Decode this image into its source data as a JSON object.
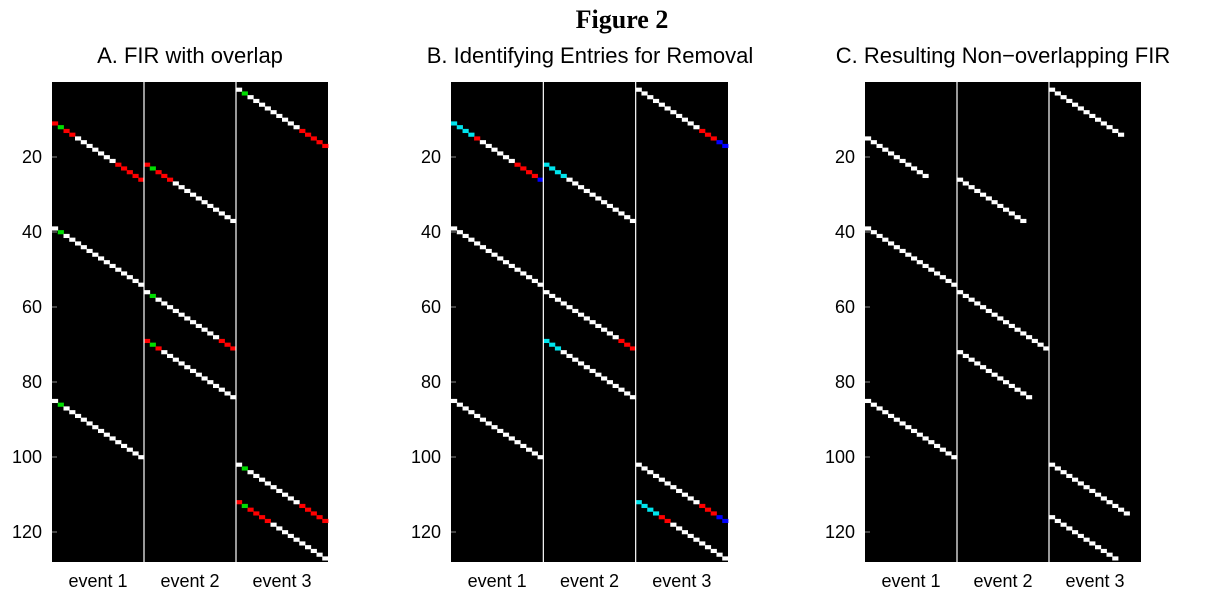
{
  "figure_title": "Figure 2",
  "colors": {
    "background": "#000000",
    "white": "#ffffff",
    "red": "#ff0000",
    "green": "#00dd00",
    "cyan": "#00e5ee",
    "blue": "#0000ff",
    "divider": "#ffffff"
  },
  "chart_data": [
    {
      "type": "heatmap",
      "title": "A. FIR with overlap",
      "ylim": [
        0,
        128
      ],
      "yticks": [
        20,
        40,
        60,
        80,
        100,
        120
      ],
      "columns": [
        "event 1",
        "event 2",
        "event 3"
      ],
      "diagonals": [
        {
          "column": "event 1",
          "start_row": 11,
          "length": 16,
          "colors": [
            "red",
            "green",
            "red",
            "red",
            "white",
            "white",
            "white",
            "white",
            "white",
            "white",
            "white",
            "red",
            "red",
            "red",
            "red",
            "red"
          ]
        },
        {
          "column": "event 1",
          "start_row": 39,
          "length": 16,
          "colors": [
            "white",
            "green",
            "white",
            "white",
            "white",
            "white",
            "white",
            "white",
            "white",
            "white",
            "white",
            "white",
            "white",
            "white",
            "white",
            "white"
          ]
        },
        {
          "column": "event 1",
          "start_row": 85,
          "length": 16,
          "colors": [
            "white",
            "green",
            "white",
            "white",
            "white",
            "white",
            "white",
            "white",
            "white",
            "white",
            "white",
            "white",
            "white",
            "white",
            "white",
            "white"
          ]
        },
        {
          "column": "event 2",
          "start_row": 22,
          "length": 16,
          "colors": [
            "red",
            "green",
            "red",
            "red",
            "red",
            "white",
            "white",
            "white",
            "white",
            "white",
            "white",
            "white",
            "white",
            "white",
            "white",
            "white"
          ]
        },
        {
          "column": "event 2",
          "start_row": 56,
          "length": 16,
          "colors": [
            "white",
            "green",
            "white",
            "white",
            "white",
            "white",
            "white",
            "white",
            "white",
            "white",
            "white",
            "white",
            "white",
            "red",
            "red",
            "red"
          ]
        },
        {
          "column": "event 2",
          "start_row": 69,
          "length": 16,
          "colors": [
            "red",
            "green",
            "red",
            "white",
            "white",
            "white",
            "white",
            "white",
            "white",
            "white",
            "white",
            "white",
            "white",
            "white",
            "white",
            "white"
          ]
        },
        {
          "column": "event 3",
          "start_row": 2,
          "length": 16,
          "colors": [
            "white",
            "green",
            "white",
            "white",
            "white",
            "white",
            "white",
            "white",
            "white",
            "white",
            "white",
            "red",
            "red",
            "red",
            "red",
            "red"
          ]
        },
        {
          "column": "event 3",
          "start_row": 102,
          "length": 16,
          "colors": [
            "white",
            "green",
            "white",
            "white",
            "white",
            "white",
            "white",
            "white",
            "white",
            "white",
            "white",
            "red",
            "red",
            "red",
            "red",
            "red"
          ]
        },
        {
          "column": "event 3",
          "start_row": 112,
          "length": 16,
          "colors": [
            "red",
            "green",
            "red",
            "red",
            "red",
            "red",
            "white",
            "white",
            "white",
            "white",
            "white",
            "white",
            "white",
            "white",
            "white",
            "white"
          ]
        }
      ]
    },
    {
      "type": "heatmap",
      "title": "B. Identifying Entries for Removal",
      "ylim": [
        0,
        128
      ],
      "yticks": [
        20,
        40,
        60,
        80,
        100,
        120
      ],
      "columns": [
        "event 1",
        "event 2",
        "event 3"
      ],
      "diagonals": [
        {
          "column": "event 1",
          "start_row": 11,
          "length": 16,
          "colors": [
            "cyan",
            "cyan",
            "cyan",
            "cyan",
            "red",
            "white",
            "white",
            "white",
            "white",
            "white",
            "white",
            "red",
            "red",
            "red",
            "red",
            "blue"
          ]
        },
        {
          "column": "event 1",
          "start_row": 39,
          "length": 16,
          "colors": [
            "white",
            "white",
            "white",
            "white",
            "white",
            "white",
            "white",
            "white",
            "white",
            "white",
            "white",
            "white",
            "white",
            "white",
            "white",
            "white"
          ]
        },
        {
          "column": "event 1",
          "start_row": 85,
          "length": 16,
          "colors": [
            "white",
            "white",
            "white",
            "white",
            "white",
            "white",
            "white",
            "white",
            "white",
            "white",
            "white",
            "white",
            "white",
            "white",
            "white",
            "white"
          ]
        },
        {
          "column": "event 2",
          "start_row": 22,
          "length": 16,
          "colors": [
            "cyan",
            "cyan",
            "cyan",
            "cyan",
            "white",
            "white",
            "white",
            "white",
            "white",
            "white",
            "white",
            "white",
            "white",
            "white",
            "white",
            "white"
          ]
        },
        {
          "column": "event 2",
          "start_row": 56,
          "length": 16,
          "colors": [
            "white",
            "white",
            "white",
            "white",
            "white",
            "white",
            "white",
            "white",
            "white",
            "white",
            "white",
            "white",
            "white",
            "red",
            "red",
            "red"
          ]
        },
        {
          "column": "event 2",
          "start_row": 69,
          "length": 16,
          "colors": [
            "cyan",
            "cyan",
            "cyan",
            "white",
            "white",
            "white",
            "white",
            "white",
            "white",
            "white",
            "white",
            "white",
            "white",
            "white",
            "white",
            "white"
          ]
        },
        {
          "column": "event 3",
          "start_row": 2,
          "length": 16,
          "colors": [
            "white",
            "white",
            "white",
            "white",
            "white",
            "white",
            "white",
            "white",
            "white",
            "white",
            "white",
            "red",
            "red",
            "red",
            "blue",
            "blue"
          ]
        },
        {
          "column": "event 3",
          "start_row": 102,
          "length": 16,
          "colors": [
            "white",
            "white",
            "white",
            "white",
            "white",
            "white",
            "white",
            "white",
            "white",
            "white",
            "white",
            "red",
            "red",
            "red",
            "blue",
            "blue"
          ]
        },
        {
          "column": "event 3",
          "start_row": 112,
          "length": 16,
          "colors": [
            "cyan",
            "cyan",
            "cyan",
            "cyan",
            "red",
            "red",
            "white",
            "white",
            "white",
            "white",
            "white",
            "white",
            "white",
            "white",
            "white",
            "white"
          ]
        }
      ]
    },
    {
      "type": "heatmap",
      "title": "C. Resulting Non−overlapping FIR",
      "ylim": [
        0,
        128
      ],
      "yticks": [
        20,
        40,
        60,
        80,
        100,
        120
      ],
      "columns": [
        "event 1",
        "event 2",
        "event 3"
      ],
      "diagonals": [
        {
          "column": "event 1",
          "start_row": 15,
          "length": 11,
          "colors": []
        },
        {
          "column": "event 1",
          "start_row": 39,
          "length": 16,
          "colors": []
        },
        {
          "column": "event 1",
          "start_row": 85,
          "length": 16,
          "colors": []
        },
        {
          "column": "event 2",
          "start_row": 26,
          "length": 12,
          "colors": []
        },
        {
          "column": "event 2",
          "start_row": 56,
          "length": 16,
          "colors": []
        },
        {
          "column": "event 2",
          "start_row": 72,
          "length": 13,
          "colors": []
        },
        {
          "column": "event 3",
          "start_row": 2,
          "length": 13,
          "colors": []
        },
        {
          "column": "event 3",
          "start_row": 102,
          "length": 14,
          "colors": []
        },
        {
          "column": "event 3",
          "start_row": 116,
          "length": 12,
          "colors": []
        }
      ]
    }
  ]
}
